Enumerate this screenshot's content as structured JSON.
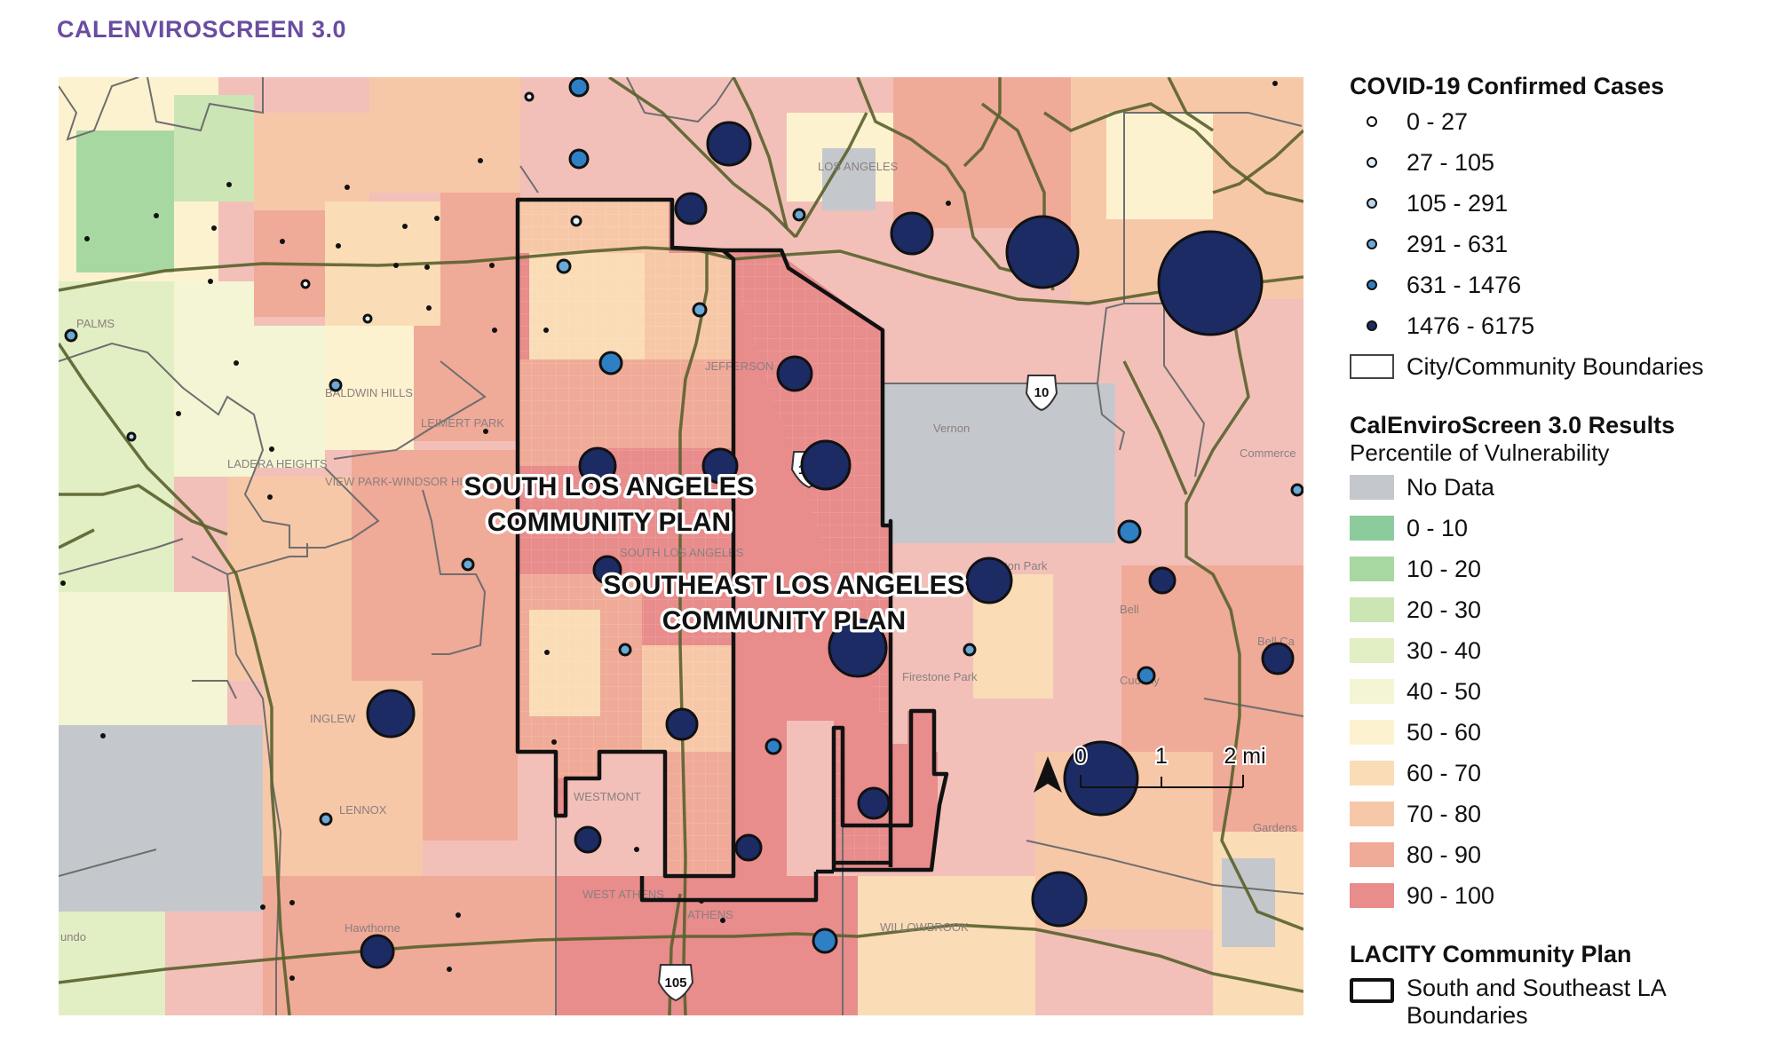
{
  "header": {
    "title": "CALENVIROSCREEN 3.0"
  },
  "map": {
    "place_labels": {
      "los_angeles": "LOS ANGELES",
      "palms": "PALMS",
      "baldwin_hills": "BALDWIN HILLS",
      "leimert_park": "LEIMERT PARK",
      "ladera_heights": "LADERA HEIGHTS",
      "view_park": "VIEW PARK-WINDSOR HILLS",
      "jefferson": "JEFFERSON",
      "vernon": "Vernon",
      "commerce": "Commerce",
      "bell": "Bell",
      "huntington_park": "ton Park",
      "firestone_park": "Firestone Park",
      "inglewood": "INGLEW",
      "lennox": "LENNOX",
      "westmont": "WESTMONT",
      "west_athens": "WEST ATHENS",
      "athens": "ATHENS",
      "willowbrook": "WILLOWBROOK",
      "hawthorne": "Hawthorne",
      "gardena": "undo",
      "south_la_small": "SOUTH LOS ANGELES",
      "cudahy": "Cudahy",
      "bell_gardens": "Gardens",
      "bell_cities": "Bell Ca"
    },
    "plan_labels": {
      "south_line1": "SOUTH LOS ANGELES",
      "south_line2": "COMMUNITY PLAN",
      "southeast_line1": "SOUTHEAST LOS ANGELES",
      "southeast_line2": "COMMUNITY PLAN"
    },
    "highway_shields": {
      "i10": "10",
      "i110": "110",
      "i105": "105"
    },
    "scale_bar": {
      "labels": [
        "0",
        "1",
        "2 mi"
      ]
    },
    "north_arrow": "north-arrow-icon"
  },
  "legend": {
    "covid": {
      "title": "COVID-19 Confirmed Cases",
      "classes": [
        {
          "label": "0 - 27",
          "color": "#ffffff"
        },
        {
          "label": "27 - 105",
          "color": "#e4eef6"
        },
        {
          "label": "105 - 291",
          "color": "#b8d6ec"
        },
        {
          "label": "291 - 631",
          "color": "#6aaad6"
        },
        {
          "label": "631 - 1476",
          "color": "#2e7fc4"
        },
        {
          "label": "1476 - 6175",
          "color": "#1c2b64"
        }
      ],
      "boundary_label": "City/Community Boundaries"
    },
    "ces": {
      "title": "CalEnviroScreen 3.0 Results",
      "subtitle": "Percentile of Vulnerability",
      "classes": [
        {
          "label": "No Data",
          "color": "#c4c8cc"
        },
        {
          "label": "0 - 10",
          "color": "#8ccb9c"
        },
        {
          "label": "10 - 20",
          "color": "#a8d8a2"
        },
        {
          "label": "20 - 30",
          "color": "#cbe6b4"
        },
        {
          "label": "30 - 40",
          "color": "#e2efc4"
        },
        {
          "label": "40 - 50",
          "color": "#f3f5d4"
        },
        {
          "label": "50 - 60",
          "color": "#fdf2cf"
        },
        {
          "label": "60 - 70",
          "color": "#fadcb6"
        },
        {
          "label": "70 - 80",
          "color": "#f7c8a8"
        },
        {
          "label": "80 - 90",
          "color": "#f0aa98"
        },
        {
          "label": "90 - 100",
          "color": "#e88c8c"
        }
      ]
    },
    "plan": {
      "title": "LACITY Community Plan",
      "label_line1": "South and Southeast LA",
      "label_line2": "Boundaries"
    }
  }
}
